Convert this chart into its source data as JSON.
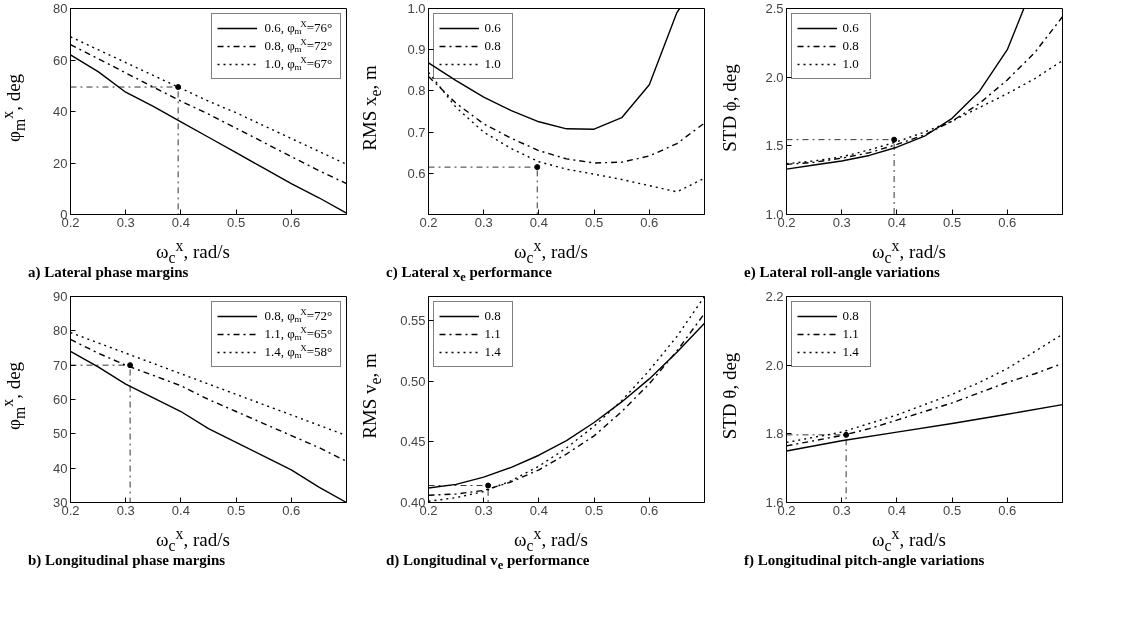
{
  "chart_data": [
    {
      "type": "line",
      "title": "a) Lateral phase margins",
      "xlabel": "ω$_{c}$$^{x}$, rad/s",
      "ylabel": "φ$_{m}$$^{x}$, deg",
      "xlim": [
        0.2,
        0.7
      ],
      "xticks": [
        0.2,
        0.3,
        0.4,
        0.5,
        0.6
      ],
      "ylim": [
        0,
        80
      ],
      "yticks": [
        0,
        20,
        40,
        60,
        80
      ],
      "legend": "top right",
      "series": [
        {
          "name": "0.6, φ$_{m}$$^{X}$=76°",
          "color": "#000000",
          "line_style": "solid",
          "x": [
            0.2,
            0.25,
            0.3,
            0.35,
            0.4,
            0.45,
            0.5,
            0.55,
            0.6,
            0.65,
            0.7
          ],
          "values": [
            62,
            55.5,
            47.5,
            42,
            36,
            30,
            24,
            18,
            12,
            6.5,
            0.5
          ]
        },
        {
          "name": "0.8, φ$_{m}$$^{X}$=72°",
          "color": "#000000",
          "line_style": "dashdot",
          "x": [
            0.2,
            0.25,
            0.3,
            0.35,
            0.4,
            0.45,
            0.5,
            0.55,
            0.6,
            0.65,
            0.7
          ],
          "values": [
            66,
            60.5,
            55,
            49.5,
            44,
            39,
            33.5,
            28,
            22.5,
            17,
            12
          ]
        },
        {
          "name": "1.0, φ$_{m}$$^{X}$=67°",
          "color": "#000000",
          "line_style": "dotted",
          "x": [
            0.2,
            0.25,
            0.3,
            0.35,
            0.4,
            0.45,
            0.5,
            0.55,
            0.6,
            0.65,
            0.7
          ],
          "values": [
            69,
            64,
            59,
            54,
            49,
            44,
            39.5,
            34.5,
            29.5,
            24.5,
            19.5
          ]
        },
        {
          "type": "line",
          "color": "#000000",
          "line_style": "dashdot",
          "x": [
            0.2,
            0.395,
            0.395
          ],
          "values": [
            49.5,
            49.5,
            0
          ]
        },
        {
          "type": "scatter",
          "marker": "circle",
          "color": "#000000",
          "x": [
            0.395
          ],
          "values": [
            49.5
          ]
        }
      ]
    },
    {
      "type": "line",
      "title": "c) Lateral x$_{e}$ performance",
      "xlabel": "ω$_{c}$$^{x}$, rad/s",
      "ylabel": "RMS x$_{e}$, m",
      "xlim": [
        0.2,
        0.7
      ],
      "xticks": [
        0.2,
        0.3,
        0.4,
        0.5,
        0.6
      ],
      "ylim": [
        0.5,
        1.0
      ],
      "yticks": [
        0.6,
        0.7,
        0.8,
        0.9,
        {
          "value": 1,
          "label": "1.0"
        }
      ],
      "legend": "top left",
      "series": [
        {
          "name": "0.6",
          "color": "#000000",
          "line_style": "solid",
          "x": [
            0.2,
            0.25,
            0.3,
            0.35,
            0.4,
            0.45,
            0.5,
            0.55,
            0.6,
            0.65,
            0.655
          ],
          "values": [
            0.868,
            0.825,
            0.785,
            0.752,
            0.725,
            0.708,
            0.707,
            0.735,
            0.815,
            0.99,
            1.0
          ]
        },
        {
          "name": "0.8",
          "color": "#000000",
          "line_style": "dashdot",
          "x": [
            0.2,
            0.25,
            0.3,
            0.35,
            0.4,
            0.45,
            0.5,
            0.55,
            0.6,
            0.65,
            0.7
          ],
          "values": [
            0.835,
            0.77,
            0.72,
            0.685,
            0.655,
            0.635,
            0.625,
            0.627,
            0.642,
            0.672,
            0.722
          ]
        },
        {
          "name": "1.0",
          "color": "#000000",
          "line_style": "dotted",
          "x": [
            0.2,
            0.25,
            0.3,
            0.35,
            0.4,
            0.45,
            0.5,
            0.55,
            0.6,
            0.65,
            0.7
          ],
          "values": [
            0.845,
            0.76,
            0.7,
            0.66,
            0.628,
            0.61,
            0.598,
            0.585,
            0.57,
            0.555,
            0.588
          ]
        },
        {
          "type": "line",
          "color": "#000000",
          "line_style": "dashdot",
          "x": [
            0.2,
            0.397,
            0.397
          ],
          "values": [
            0.615,
            0.615,
            0.5
          ]
        },
        {
          "type": "scatter",
          "marker": "circle",
          "color": "#000000",
          "x": [
            0.397
          ],
          "values": [
            0.615
          ]
        }
      ]
    },
    {
      "type": "line",
      "title": "e) Lateral roll-angle variations",
      "xlabel": "ω$_{c}$$^{x}$, rad/s",
      "ylabel": "STD ϕ, deg",
      "xlim": [
        0.2,
        0.7
      ],
      "xticks": [
        0.2,
        0.3,
        0.4,
        0.5,
        0.6
      ],
      "ylim": [
        1,
        2.5
      ],
      "yticks": [
        {
          "value": 1,
          "label": "1.0"
        },
        1.5,
        {
          "value": 2,
          "label": "2.0"
        },
        2.5
      ],
      "legend": "top left",
      "series": [
        {
          "name": "0.6",
          "color": "#000000",
          "line_style": "solid",
          "x": [
            0.2,
            0.25,
            0.3,
            0.35,
            0.4,
            0.45,
            0.5,
            0.55,
            0.6,
            0.63
          ],
          "values": [
            1.33,
            1.36,
            1.39,
            1.43,
            1.49,
            1.57,
            1.7,
            1.9,
            2.2,
            2.5
          ]
        },
        {
          "name": "0.8",
          "color": "#000000",
          "line_style": "dashdot",
          "x": [
            0.2,
            0.25,
            0.3,
            0.35,
            0.4,
            0.45,
            0.5,
            0.55,
            0.6,
            0.65,
            0.7
          ],
          "values": [
            1.365,
            1.38,
            1.41,
            1.45,
            1.51,
            1.58,
            1.68,
            1.81,
            1.98,
            2.18,
            2.44
          ]
        },
        {
          "name": "1.0",
          "color": "#000000",
          "line_style": "dotted",
          "x": [
            0.2,
            0.25,
            0.3,
            0.35,
            0.4,
            0.45,
            0.5,
            0.55,
            0.6,
            0.65,
            0.7
          ],
          "values": [
            1.37,
            1.39,
            1.42,
            1.47,
            1.53,
            1.6,
            1.68,
            1.78,
            1.88,
            1.99,
            2.12
          ]
        },
        {
          "type": "line",
          "color": "#000000",
          "line_style": "dashdot",
          "x": [
            0.2,
            0.395,
            0.395
          ],
          "values": [
            1.545,
            1.545,
            1
          ]
        },
        {
          "type": "scatter",
          "marker": "circle",
          "color": "#000000",
          "x": [
            0.395
          ],
          "values": [
            1.545
          ]
        }
      ]
    },
    {
      "type": "line",
      "title": "b) Longitudinal phase margins",
      "xlabel": "ω$_{c}$$^{x}$, rad/s",
      "ylabel": "φ$_{m}$$^{x}$, deg",
      "xlim": [
        0.2,
        0.7
      ],
      "xticks": [
        0.2,
        0.3,
        0.4,
        0.5,
        0.6
      ],
      "ylim": [
        30,
        90
      ],
      "yticks": [
        30,
        40,
        50,
        60,
        70,
        80,
        90
      ],
      "legend": "top right",
      "series": [
        {
          "name": "0.8, φ$_{m}$$^{X}$=72°",
          "color": "#000000",
          "line_style": "solid",
          "x": [
            0.2,
            0.25,
            0.3,
            0.35,
            0.4,
            0.45,
            0.5,
            0.55,
            0.6,
            0.65,
            0.7
          ],
          "values": [
            74,
            69.5,
            64.5,
            60.5,
            56.5,
            51.5,
            47.5,
            43.5,
            39.5,
            34.5,
            30
          ]
        },
        {
          "name": "1.1, φ$_{m}$$^{X}$=65°",
          "color": "#000000",
          "line_style": "dashdot",
          "x": [
            0.2,
            0.25,
            0.3,
            0.35,
            0.4,
            0.45,
            0.5,
            0.55,
            0.6,
            0.65,
            0.7
          ],
          "values": [
            77.5,
            73.5,
            70,
            67,
            64,
            60,
            56.5,
            53,
            49.5,
            46,
            42
          ]
        },
        {
          "name": "1.4, φ$_{m}$$^{X}$=58°",
          "color": "#000000",
          "line_style": "dotted",
          "x": [
            0.2,
            0.25,
            0.3,
            0.35,
            0.4,
            0.45,
            0.5,
            0.55,
            0.6,
            0.65,
            0.7
          ],
          "values": [
            79.5,
            76.5,
            73.5,
            70.5,
            67.5,
            64.5,
            61.5,
            58.5,
            55.5,
            52.5,
            49.5
          ]
        },
        {
          "type": "line",
          "color": "#000000",
          "line_style": "dashdot",
          "x": [
            0.2,
            0.308,
            0.308
          ],
          "values": [
            70,
            70,
            30
          ]
        },
        {
          "type": "scatter",
          "marker": "circle",
          "color": "#000000",
          "x": [
            0.308
          ],
          "values": [
            70
          ]
        }
      ]
    },
    {
      "type": "line",
      "title": "d) Longitudinal v$_{e}$ performance",
      "xlabel": "ω$_{c}$$^{x}$, rad/s",
      "ylabel": "RMS v$_{e}$, m",
      "xlim": [
        0.2,
        0.7
      ],
      "xticks": [
        0.2,
        0.3,
        0.4,
        0.5,
        0.6
      ],
      "ylim": [
        0.4,
        0.57
      ],
      "yticks": [
        {
          "value": 0.4,
          "label": "0.40"
        },
        0.45,
        {
          "value": 0.5,
          "label": "0.50"
        },
        0.55
      ],
      "legend": "top left",
      "series": [
        {
          "name": "0.8",
          "color": "#000000",
          "line_style": "solid",
          "x": [
            0.2,
            0.25,
            0.3,
            0.35,
            0.4,
            0.45,
            0.5,
            0.55,
            0.6,
            0.65,
            0.7
          ],
          "values": [
            0.412,
            0.415,
            0.421,
            0.429,
            0.439,
            0.451,
            0.466,
            0.483,
            0.502,
            0.524,
            0.548
          ]
        },
        {
          "name": "1.1",
          "color": "#000000",
          "line_style": "dashdot",
          "x": [
            0.2,
            0.25,
            0.3,
            0.35,
            0.4,
            0.45,
            0.5,
            0.55,
            0.6,
            0.65,
            0.7
          ],
          "values": [
            0.406,
            0.407,
            0.41,
            0.417,
            0.427,
            0.44,
            0.455,
            0.475,
            0.498,
            0.525,
            0.556
          ]
        },
        {
          "name": "1.4",
          "color": "#000000",
          "line_style": "dotted",
          "x": [
            0.2,
            0.25,
            0.3,
            0.35,
            0.4,
            0.45,
            0.5,
            0.55,
            0.6,
            0.65,
            0.7
          ],
          "values": [
            0.401,
            0.404,
            0.409,
            0.418,
            0.43,
            0.445,
            0.463,
            0.484,
            0.509,
            0.537,
            0.57
          ]
        },
        {
          "type": "line",
          "color": "#000000",
          "line_style": "dashdot",
          "x": [
            0.2,
            0.308,
            0.308
          ],
          "values": [
            0.414,
            0.414,
            0.4
          ]
        },
        {
          "type": "scatter",
          "marker": "circle",
          "color": "#000000",
          "x": [
            0.308
          ],
          "values": [
            0.414
          ]
        }
      ]
    },
    {
      "type": "line",
      "title": "f) Longitudinal pitch-angle variations",
      "xlabel": "ω$_{c}$$^{x}$, rad/s",
      "ylabel": "STD θ, deg",
      "xlim": [
        0.2,
        0.7
      ],
      "xticks": [
        0.2,
        0.3,
        0.4,
        0.5,
        0.6
      ],
      "ylim": [
        1.6,
        2.2
      ],
      "yticks": [
        1.6,
        1.8,
        {
          "value": 2,
          "label": "2.0"
        },
        2.2
      ],
      "legend": "top left",
      "series": [
        {
          "name": "0.8",
          "color": "#000000",
          "line_style": "solid",
          "x": [
            0.2,
            0.3,
            0.4,
            0.5,
            0.6,
            0.7
          ],
          "values": [
            1.75,
            1.78,
            1.805,
            1.83,
            1.857,
            1.885
          ]
        },
        {
          "name": "1.1",
          "color": "#000000",
          "line_style": "dashdot",
          "x": [
            0.2,
            0.25,
            0.3,
            0.35,
            0.4,
            0.45,
            0.5,
            0.55,
            0.6,
            0.65,
            0.7
          ],
          "values": [
            1.765,
            1.78,
            1.795,
            1.815,
            1.84,
            1.865,
            1.89,
            1.92,
            1.95,
            1.975,
            2.005
          ]
        },
        {
          "name": "1.4",
          "color": "#000000",
          "line_style": "dotted",
          "x": [
            0.2,
            0.25,
            0.3,
            0.35,
            0.4,
            0.45,
            0.5,
            0.55,
            0.6,
            0.65,
            0.7
          ],
          "values": [
            1.775,
            1.79,
            1.805,
            1.83,
            1.855,
            1.885,
            1.915,
            1.95,
            1.99,
            2.04,
            2.09
          ]
        },
        {
          "type": "line",
          "color": "#000000",
          "line_style": "dashdot",
          "x": [
            0.2,
            0.308,
            0.308
          ],
          "values": [
            1.797,
            1.797,
            1.6
          ]
        },
        {
          "type": "scatter",
          "marker": "circle",
          "color": "#000000",
          "x": [
            0.308
          ],
          "values": [
            1.797
          ]
        }
      ]
    }
  ]
}
